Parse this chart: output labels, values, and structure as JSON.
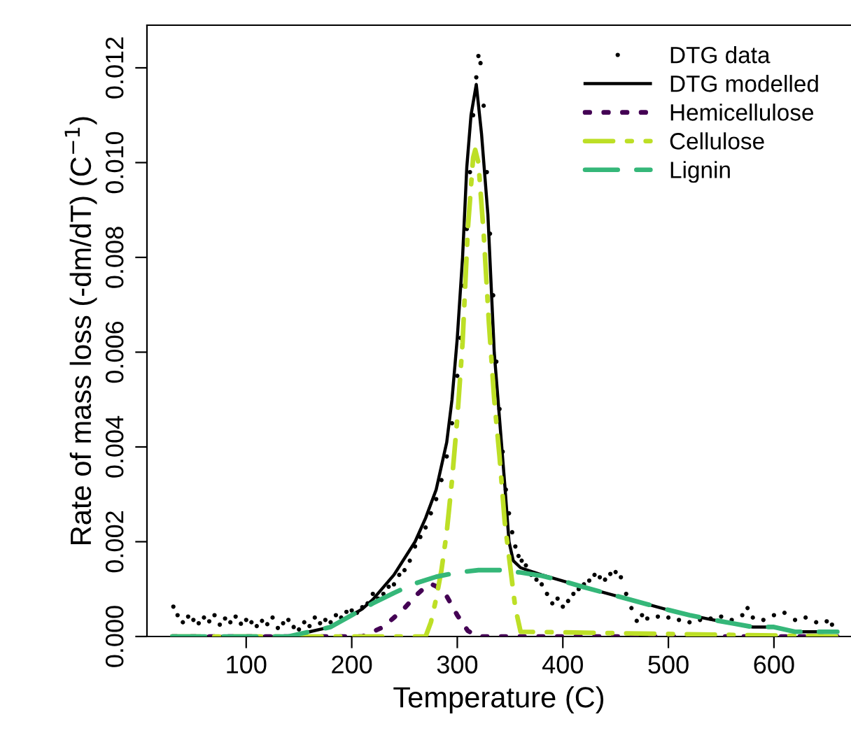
{
  "chart_data": {
    "type": "line",
    "xlabel": "Temperature (C)",
    "ylabel": "Rate of mass loss (-dm/dT) (C$^{−1}$)",
    "xlim": [
      6,
      673
    ],
    "ylim": [
      0,
      0.0129
    ],
    "xticks": [
      100,
      200,
      300,
      400,
      500,
      600
    ],
    "yticks": [
      {
        "value": 0,
        "label": "0.000"
      },
      {
        "value": 0.002,
        "label": "0.002"
      },
      {
        "value": 0.004,
        "label": "0.004"
      },
      {
        "value": 0.006,
        "label": "0.006"
      },
      {
        "value": 0.008,
        "label": "0.008"
      },
      {
        "value": 0.01,
        "label": "0.010"
      },
      {
        "value": 0.012,
        "label": "0.012"
      }
    ],
    "grid": false,
    "legend": "top right",
    "series": [
      {
        "name": "DTG data",
        "type": "scatter",
        "marker": "circle",
        "color": "#000000",
        "x": [
          31,
          35,
          40,
          45,
          50,
          55,
          60,
          65,
          70,
          75,
          80,
          85,
          90,
          95,
          100,
          105,
          110,
          115,
          120,
          125,
          130,
          135,
          140,
          145,
          150,
          155,
          160,
          165,
          170,
          175,
          180,
          185,
          190,
          195,
          200,
          205,
          210,
          215,
          220,
          225,
          230,
          235,
          240,
          245,
          250,
          255,
          260,
          265,
          270,
          275,
          280,
          285,
          290,
          295,
          300,
          303,
          306,
          309,
          312,
          315,
          318,
          320,
          322,
          325,
          328,
          331,
          334,
          337,
          340,
          343,
          346,
          349,
          352,
          355,
          358,
          361,
          365,
          370,
          375,
          380,
          385,
          390,
          395,
          400,
          405,
          410,
          415,
          420,
          425,
          430,
          435,
          440,
          445,
          450,
          455,
          460,
          465,
          470,
          475,
          480,
          490,
          500,
          510,
          520,
          530,
          540,
          550,
          560,
          570,
          575,
          580,
          590,
          600,
          610,
          620,
          630,
          640,
          650,
          655
        ],
        "values": [
          0.00063,
          0.00045,
          0.0003,
          0.00042,
          0.00035,
          0.00028,
          0.0004,
          0.00032,
          0.00045,
          0.00025,
          0.00038,
          0.0003,
          0.00042,
          0.00027,
          0.00035,
          0.0003,
          0.00022,
          0.00033,
          0.00026,
          0.0004,
          0.00018,
          0.00028,
          0.00035,
          0.0002,
          0.00015,
          0.0003,
          0.00022,
          0.0004,
          0.00028,
          0.00035,
          0.0003,
          0.00045,
          0.0004,
          0.00052,
          0.00055,
          0.0005,
          0.00062,
          0.0007,
          0.0009,
          0.0008,
          0.0009,
          0.00105,
          0.0011,
          0.0013,
          0.0014,
          0.0016,
          0.0019,
          0.0021,
          0.0023,
          0.0026,
          0.0029,
          0.0033,
          0.0038,
          0.0045,
          0.0055,
          0.0063,
          0.0074,
          0.0086,
          0.0098,
          0.011,
          0.0118,
          0.01225,
          0.0121,
          0.0112,
          0.0098,
          0.0085,
          0.0072,
          0.0058,
          0.0048,
          0.0039,
          0.0031,
          0.0026,
          0.0022,
          0.0019,
          0.0017,
          0.0016,
          0.0015,
          0.0013,
          0.0012,
          0.0011,
          0.0009,
          0.0007,
          0.0008,
          0.00063,
          0.00075,
          0.0009,
          0.001,
          0.0011,
          0.00118,
          0.0013,
          0.00125,
          0.0012,
          0.00132,
          0.00136,
          0.00125,
          0.0009,
          0.0006,
          0.00033,
          0.00045,
          0.00038,
          0.00042,
          0.0004,
          0.00035,
          0.0003,
          0.00035,
          0.00038,
          0.00042,
          0.00035,
          0.00045,
          0.0006,
          0.0004,
          0.00035,
          0.00045,
          0.0005,
          0.00035,
          0.0004,
          0.0003,
          0.00032,
          0.00025
        ]
      },
      {
        "name": "DTG modelled",
        "line_style": "solid",
        "color": "#000000",
        "x": [
          30,
          140,
          160,
          180,
          200,
          210,
          220,
          240,
          260,
          270,
          280,
          290,
          295,
          300,
          305,
          309,
          313,
          318,
          323,
          329,
          335,
          340,
          345,
          349,
          353,
          360,
          380,
          400,
          420,
          440,
          460,
          480,
          500,
          520,
          540,
          560,
          580,
          600,
          620,
          640,
          660
        ],
        "values": [
          0,
          0,
          0.0001,
          0.0002,
          0.00045,
          0.00058,
          0.00078,
          0.0013,
          0.002,
          0.0025,
          0.0031,
          0.0041,
          0.005,
          0.0063,
          0.008,
          0.0099,
          0.011,
          0.01165,
          0.0106,
          0.0089,
          0.006,
          0.0046,
          0.0032,
          0.002,
          0.0016,
          0.00145,
          0.0013,
          0.00117,
          0.00104,
          0.00092,
          0.0008,
          0.00068,
          0.00056,
          0.00045,
          0.00036,
          0.00028,
          0.0002,
          0.0002,
          0.0001,
          0.0001,
          0.0001
        ]
      },
      {
        "name": "Hemicellulose",
        "line_style": "dotted",
        "color": "#440154",
        "x": [
          30,
          210,
          220,
          230,
          240,
          250,
          260,
          270,
          275,
          280,
          290,
          300,
          310,
          320,
          660
        ],
        "values": [
          0,
          0,
          0.0001,
          0.0002,
          0.0004,
          0.0006,
          0.00085,
          0.00105,
          0.00111,
          0.00106,
          0.00085,
          0.00045,
          0.00012,
          0,
          0
        ]
      },
      {
        "name": "Cellulose",
        "line_style": "dashdot",
        "color": "#bddf26",
        "x": [
          30,
          270,
          275,
          280,
          285,
          290,
          295,
          300,
          305,
          310,
          315,
          317,
          320,
          325,
          330,
          335,
          340,
          345,
          350,
          355,
          360,
          660
        ],
        "values": [
          0,
          0,
          0.0003,
          0.0008,
          0.0014,
          0.0022,
          0.0033,
          0.0046,
          0.0062,
          0.0086,
          0.0101,
          0.01027,
          0.01,
          0.0085,
          0.0066,
          0.005,
          0.0038,
          0.0024,
          0.0015,
          0.0006,
          0.0001,
          0
        ]
      },
      {
        "name": "Lignin",
        "line_style": "dashed",
        "color": "#35b779",
        "x": [
          30,
          140,
          160,
          180,
          200,
          220,
          240,
          260,
          280,
          300,
          320,
          340,
          360,
          380,
          400,
          420,
          440,
          460,
          480,
          500,
          520,
          540,
          560,
          580,
          600,
          620,
          640,
          660
        ],
        "values": [
          0,
          0,
          0.0001,
          0.0002,
          0.00045,
          0.0007,
          0.00092,
          0.00112,
          0.00126,
          0.00135,
          0.0014,
          0.0014,
          0.00135,
          0.00128,
          0.00117,
          0.00104,
          0.00092,
          0.0008,
          0.00068,
          0.00056,
          0.00045,
          0.00036,
          0.00028,
          0.0002,
          0.0002,
          0.0001,
          0.0001,
          0.0001
        ]
      }
    ]
  }
}
